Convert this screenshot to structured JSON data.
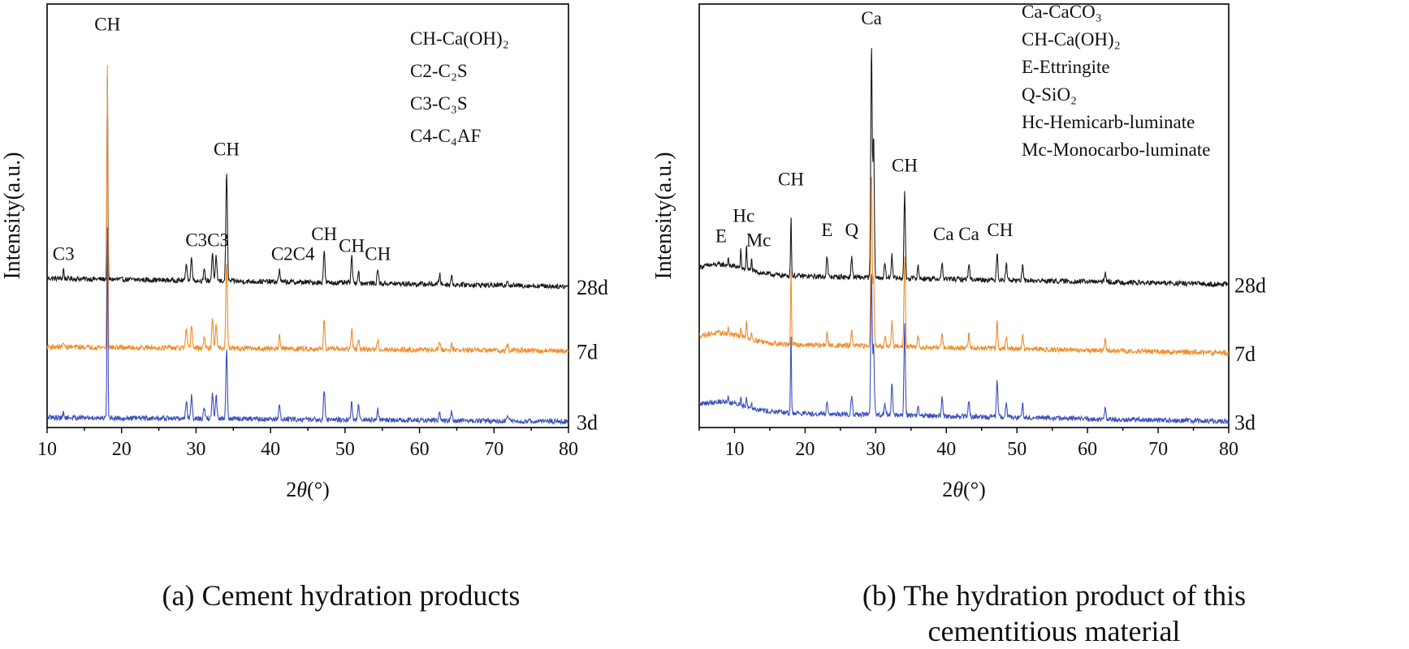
{
  "chart_data": [
    {
      "type": "line",
      "caption": "(a) Cement hydration products",
      "xlabel": "2θ(°)",
      "ylabel": "Intensity(a.u.)",
      "xlim": [
        10,
        80
      ],
      "xticks": [
        10,
        20,
        30,
        40,
        50,
        60,
        70,
        80
      ],
      "yticks": "none",
      "legend_placement": "top-right",
      "legend": [
        "CH-Ca(OH)₂",
        "C2-C₂S",
        "C3-C₃S",
        "C4-C₄AF"
      ],
      "series": [
        {
          "name": "28d",
          "color": "#1a1a1a",
          "baseline": 0.74,
          "slope": -0.04,
          "peaks": [
            [
              12.2,
              0.05
            ],
            [
              18.1,
              1.0
            ],
            [
              28.7,
              0.09
            ],
            [
              29.4,
              0.12
            ],
            [
              31.1,
              0.05
            ],
            [
              32.2,
              0.14
            ],
            [
              32.7,
              0.12
            ],
            [
              34.1,
              0.55
            ],
            [
              41.2,
              0.06
            ],
            [
              47.2,
              0.16
            ],
            [
              50.9,
              0.13
            ],
            [
              51.8,
              0.06
            ],
            [
              54.4,
              0.07
            ],
            [
              62.7,
              0.05
            ],
            [
              64.3,
              0.04
            ],
            [
              71.8,
              0.03
            ]
          ]
        },
        {
          "name": "7d",
          "color": "#f28c2a",
          "baseline": 0.4,
          "slope": -0.02,
          "peaks": [
            [
              12.2,
              0.03
            ],
            [
              18.1,
              1.4
            ],
            [
              28.7,
              0.09
            ],
            [
              29.4,
              0.12
            ],
            [
              31.1,
              0.05
            ],
            [
              32.2,
              0.15
            ],
            [
              32.7,
              0.12
            ],
            [
              34.1,
              0.44
            ],
            [
              41.2,
              0.07
            ],
            [
              47.2,
              0.15
            ],
            [
              50.9,
              0.1
            ],
            [
              51.8,
              0.05
            ],
            [
              54.4,
              0.05
            ],
            [
              62.7,
              0.04
            ],
            [
              64.3,
              0.03
            ],
            [
              71.8,
              0.03
            ]
          ]
        },
        {
          "name": "3d",
          "color": "#3b4fbf",
          "baseline": 0.05,
          "slope": -0.02,
          "peaks": [
            [
              12.2,
              0.03
            ],
            [
              18.1,
              0.95
            ],
            [
              28.7,
              0.09
            ],
            [
              29.4,
              0.12
            ],
            [
              31.1,
              0.05
            ],
            [
              32.2,
              0.13
            ],
            [
              32.7,
              0.12
            ],
            [
              34.1,
              0.34
            ],
            [
              41.2,
              0.07
            ],
            [
              47.2,
              0.15
            ],
            [
              50.9,
              0.09
            ],
            [
              51.8,
              0.07
            ],
            [
              54.4,
              0.05
            ],
            [
              62.7,
              0.05
            ],
            [
              64.3,
              0.04
            ],
            [
              71.8,
              0.03
            ]
          ]
        }
      ],
      "annotations": [
        {
          "text": "C3",
          "x": 12.2,
          "y": 0.83
        },
        {
          "text": "CH",
          "x": 18.1,
          "y": 1.97
        },
        {
          "text": "C3C3",
          "x": 31.5,
          "y": 0.9
        },
        {
          "text": "CH",
          "x": 34.1,
          "y": 1.35
        },
        {
          "text": "C2C4",
          "x": 43.0,
          "y": 0.83
        },
        {
          "text": "CH",
          "x": 47.2,
          "y": 0.93
        },
        {
          "text": "CH",
          "x": 50.9,
          "y": 0.87
        },
        {
          "text": "CH",
          "x": 54.4,
          "y": 0.83
        }
      ]
    },
    {
      "type": "line",
      "caption": "(b) The hydration product of this cementitious material",
      "caption_lines": [
        "(b) The hydration product of this",
        "cementitious material"
      ],
      "xlabel": "2θ(°)",
      "ylabel": "Intensity(a.u.)",
      "xlim": [
        5,
        80
      ],
      "xticks": [
        10,
        20,
        30,
        40,
        50,
        60,
        70,
        80
      ],
      "yticks": "none",
      "legend_placement": "top-right",
      "legend": [
        "Ca-CaCO₃",
        "CH-Ca(OH)₂",
        "E-Ettringite",
        "Q-SiO₂",
        "Hc-Hemicarb-luminate",
        "Mc-Monocarbo-luminate"
      ],
      "series": [
        {
          "name": "28d",
          "color": "#1a1a1a",
          "baseline": 0.76,
          "slope": -0.05,
          "peaks": [
            [
              9.1,
              0.03
            ],
            [
              10.9,
              0.09
            ],
            [
              11.7,
              0.13
            ],
            [
              12.4,
              0.06
            ],
            [
              18.0,
              0.3
            ],
            [
              23.1,
              0.1
            ],
            [
              26.6,
              0.1
            ],
            [
              29.4,
              1.15
            ],
            [
              29.7,
              0.7
            ],
            [
              31.3,
              0.07
            ],
            [
              32.3,
              0.12
            ],
            [
              34.1,
              0.42
            ],
            [
              36.0,
              0.06
            ],
            [
              39.4,
              0.08
            ],
            [
              43.2,
              0.08
            ],
            [
              47.2,
              0.14
            ],
            [
              48.5,
              0.09
            ],
            [
              50.8,
              0.07
            ],
            [
              62.5,
              0.05
            ]
          ]
        },
        {
          "name": "7d",
          "color": "#f28c2a",
          "baseline": 0.42,
          "slope": -0.05,
          "peaks": [
            [
              9.1,
              0.03
            ],
            [
              10.9,
              0.05
            ],
            [
              11.7,
              0.1
            ],
            [
              12.4,
              0.04
            ],
            [
              18.0,
              0.37
            ],
            [
              23.1,
              0.06
            ],
            [
              26.6,
              0.07
            ],
            [
              29.4,
              0.85
            ],
            [
              29.7,
              0.35
            ],
            [
              31.3,
              0.05
            ],
            [
              32.3,
              0.12
            ],
            [
              34.1,
              0.45
            ],
            [
              36.0,
              0.05
            ],
            [
              39.4,
              0.08
            ],
            [
              43.2,
              0.07
            ],
            [
              47.2,
              0.13
            ],
            [
              48.5,
              0.06
            ],
            [
              50.8,
              0.07
            ],
            [
              62.5,
              0.06
            ]
          ]
        },
        {
          "name": "3d",
          "color": "#3b4fbf",
          "baseline": 0.08,
          "slope": -0.05,
          "peaks": [
            [
              9.1,
              0.03
            ],
            [
              10.9,
              0.04
            ],
            [
              11.7,
              0.05
            ],
            [
              12.4,
              0.03
            ],
            [
              18.0,
              0.4
            ],
            [
              23.1,
              0.06
            ],
            [
              26.6,
              0.1
            ],
            [
              29.4,
              0.7
            ],
            [
              29.7,
              0.35
            ],
            [
              31.3,
              0.06
            ],
            [
              32.3,
              0.16
            ],
            [
              34.1,
              0.45
            ],
            [
              36.0,
              0.05
            ],
            [
              39.4,
              0.09
            ],
            [
              43.2,
              0.08
            ],
            [
              47.2,
              0.18
            ],
            [
              48.5,
              0.07
            ],
            [
              50.8,
              0.07
            ],
            [
              62.5,
              0.05
            ]
          ]
        }
      ],
      "annotations": [
        {
          "text": "E",
          "x": 8.1,
          "y": 0.92
        },
        {
          "text": "Hc",
          "x": 11.3,
          "y": 1.02
        },
        {
          "text": "Mc",
          "x": 13.4,
          "y": 0.9
        },
        {
          "text": "CH",
          "x": 18.0,
          "y": 1.2
        },
        {
          "text": "E",
          "x": 23.1,
          "y": 0.95
        },
        {
          "text": "Q",
          "x": 26.6,
          "y": 0.95
        },
        {
          "text": "Ca",
          "x": 29.4,
          "y": 2.0
        },
        {
          "text": "CH",
          "x": 34.1,
          "y": 1.27
        },
        {
          "text": "Ca",
          "x": 39.6,
          "y": 0.93
        },
        {
          "text": "Ca",
          "x": 43.2,
          "y": 0.93
        },
        {
          "text": "CH",
          "x": 47.6,
          "y": 0.95
        }
      ]
    }
  ]
}
